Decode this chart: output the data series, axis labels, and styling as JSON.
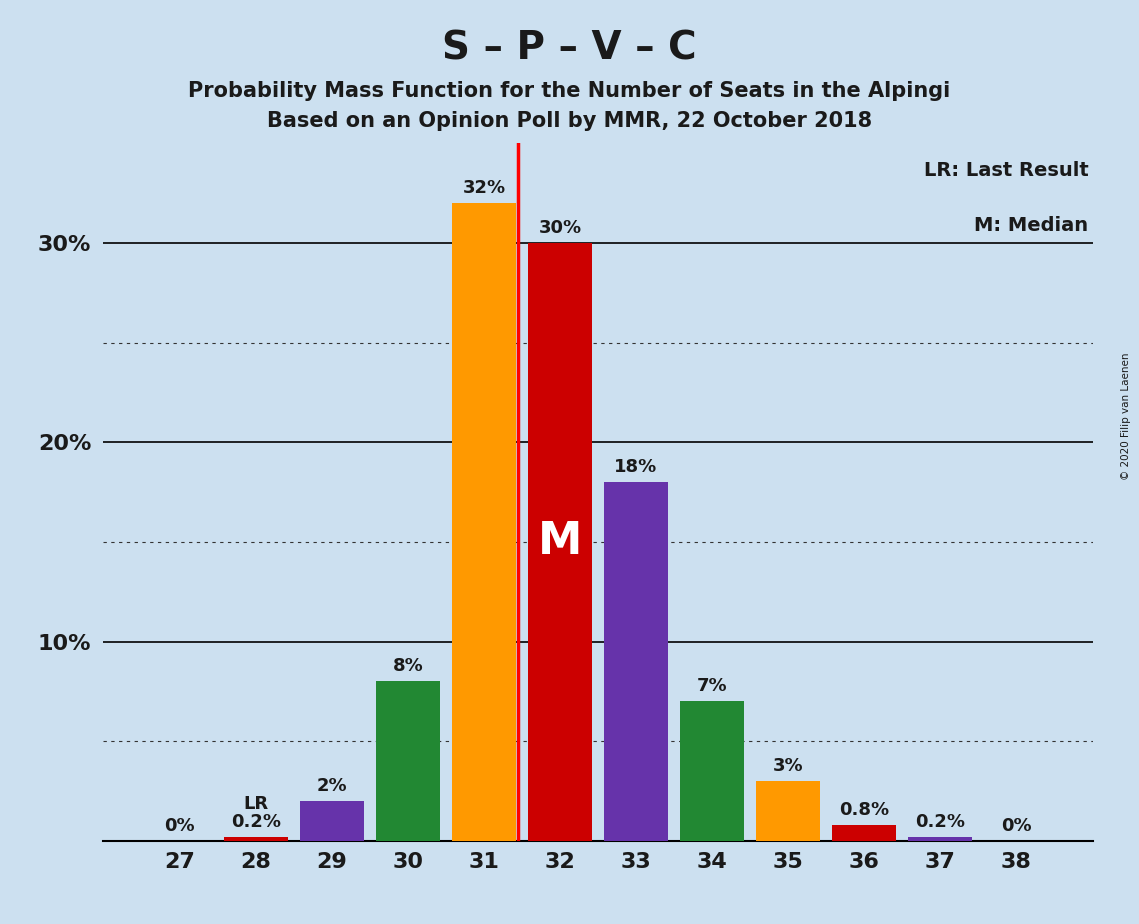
{
  "title_main": "S – P – V – C",
  "title_sub1": "Probability Mass Function for the Number of Seats in the Alpingi",
  "title_sub2": "Based on an Opinion Poll by MMR, 22 October 2018",
  "copyright": "© 2020 Filip van Laenen",
  "seats": [
    27,
    28,
    29,
    30,
    31,
    32,
    33,
    34,
    35,
    36,
    37,
    38
  ],
  "values": [
    0.0,
    0.2,
    2.0,
    8.0,
    32.0,
    30.0,
    18.0,
    7.0,
    3.0,
    0.8,
    0.2,
    0.0
  ],
  "labels": [
    "0%",
    "0.2%",
    "2%",
    "8%",
    "32%",
    "30%",
    "18%",
    "7%",
    "3%",
    "0.8%",
    "0.2%",
    "0%"
  ],
  "bar_colors": [
    "#cc0000",
    "#cc0000",
    "#6633aa",
    "#228833",
    "#ff9900",
    "#cc0000",
    "#6633aa",
    "#228833",
    "#ff9900",
    "#cc0000",
    "#6633aa",
    "#cc0000"
  ],
  "lr_seat": 28,
  "median_seat": 32,
  "background_color": "#cce0f0",
  "ylim_max": 35,
  "solid_ticks": [
    10,
    20,
    30
  ],
  "dotted_ticks": [
    5,
    15,
    25
  ],
  "lr_line_seat": 31,
  "legend_text1": "LR: Last Result",
  "legend_text2": "M: Median"
}
